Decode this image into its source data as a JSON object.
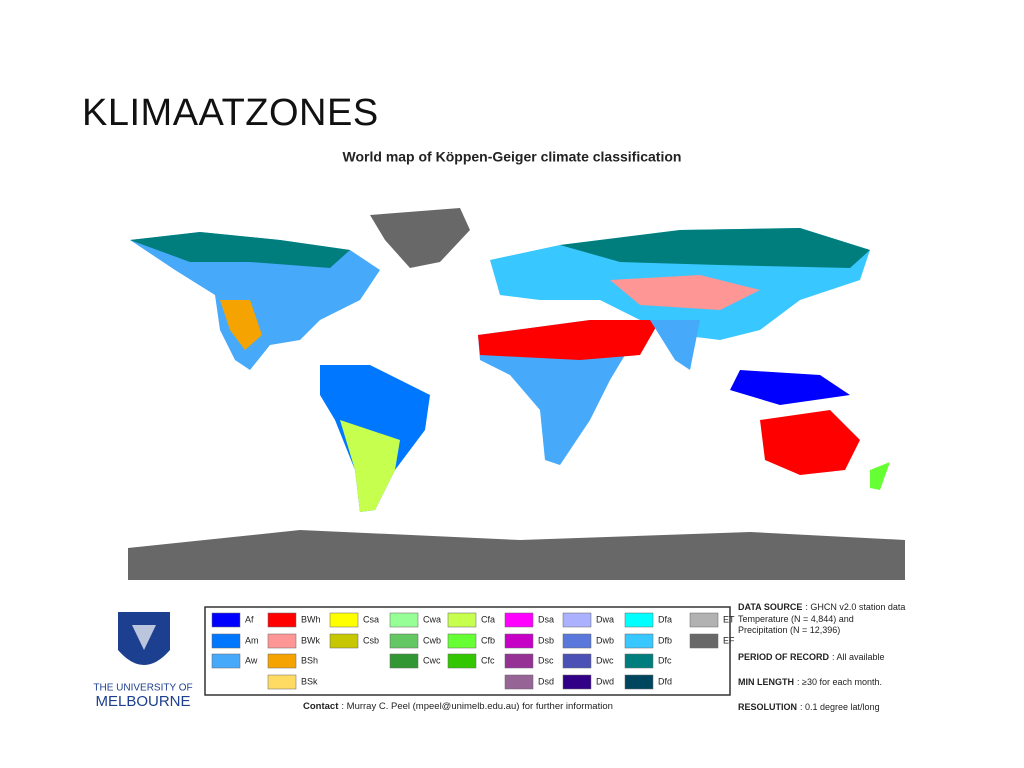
{
  "slide_title": "KLIMAATZONES",
  "map": {
    "title": "World map of Köppen-Geiger climate classification",
    "legend": [
      [
        {
          "code": "Af",
          "color": "#0000fe"
        },
        {
          "code": "Am",
          "color": "#0077ff"
        },
        {
          "code": "Aw",
          "color": "#46a9fa"
        },
        null
      ],
      [
        {
          "code": "BWh",
          "color": "#fe0000"
        },
        {
          "code": "BWk",
          "color": "#fe9695"
        },
        {
          "code": "BSh",
          "color": "#f5a301"
        },
        {
          "code": "BSk",
          "color": "#ffdb63"
        }
      ],
      [
        {
          "code": "Csa",
          "color": "#ffff00"
        },
        {
          "code": "Csb",
          "color": "#c6c700"
        },
        null,
        null
      ],
      [
        {
          "code": "Cwa",
          "color": "#96ff96"
        },
        {
          "code": "Cwb",
          "color": "#63c764"
        },
        {
          "code": "Cwc",
          "color": "#329633"
        },
        null
      ],
      [
        {
          "code": "Cfa",
          "color": "#c6ff4e"
        },
        {
          "code": "Cfb",
          "color": "#66ff33"
        },
        {
          "code": "Cfc",
          "color": "#33c701"
        },
        null
      ],
      [
        {
          "code": "Dsa",
          "color": "#ff00fe"
        },
        {
          "code": "Dsb",
          "color": "#c600c7"
        },
        {
          "code": "Dsc",
          "color": "#963295"
        },
        {
          "code": "Dsd",
          "color": "#966495"
        }
      ],
      [
        {
          "code": "Dwa",
          "color": "#abb1ff"
        },
        {
          "code": "Dwb",
          "color": "#5a77db"
        },
        {
          "code": "Dwc",
          "color": "#4c51b5"
        },
        {
          "code": "Dwd",
          "color": "#320087"
        }
      ],
      [
        {
          "code": "Dfa",
          "color": "#00ffff"
        },
        {
          "code": "Dfb",
          "color": "#38c7ff"
        },
        {
          "code": "Dfc",
          "color": "#007e7d"
        },
        {
          "code": "Dfd",
          "color": "#00455e"
        }
      ],
      [
        {
          "code": "ET",
          "color": "#b2b2b2"
        },
        {
          "code": "EF",
          "color": "#686868"
        },
        null,
        null
      ]
    ],
    "contact": {
      "label": "Contact",
      "value": ": Murray C. Peel (mpeel@unimelb.edu.au) for further information"
    },
    "info": [
      {
        "label": "DATA SOURCE",
        "value": ": GHCN v2.0 station data"
      },
      {
        "label": "",
        "value": "Temperature (N = 4,844) and"
      },
      {
        "label": "",
        "value": "Precipitation (N = 12,396)"
      },
      {
        "label": "PERIOD OF RECORD",
        "value": ": All available"
      },
      {
        "label": "MIN LENGTH",
        "value": ": ≥30 for each month."
      },
      {
        "label": "RESOLUTION",
        "value": ": 0.1 degree lat/long"
      }
    ],
    "logo": [
      "THE UNIVERSITY OF",
      "MELBOURNE"
    ]
  }
}
